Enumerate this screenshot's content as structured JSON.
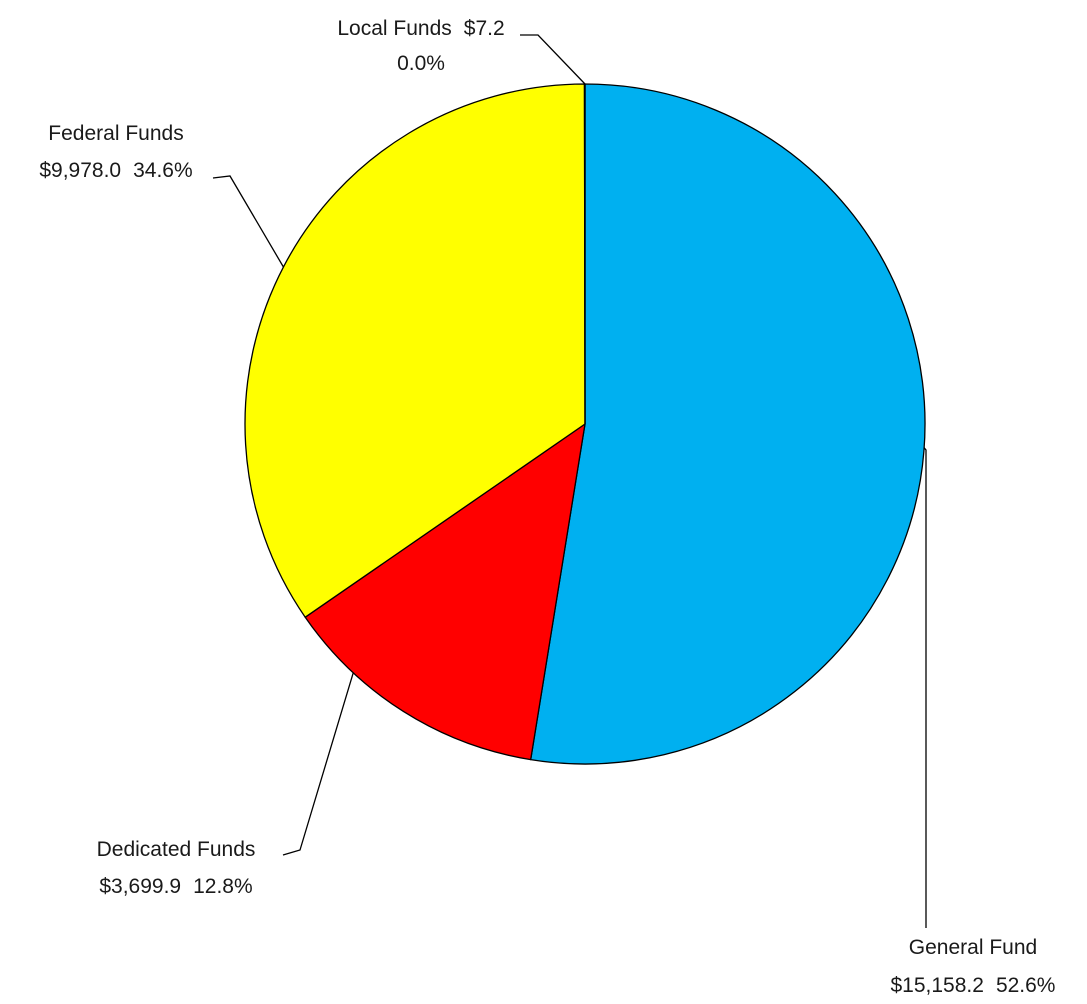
{
  "chart_data": {
    "type": "pie",
    "title": "",
    "start": "12 o'clock",
    "direction": "clockwise",
    "slices": [
      {
        "name": "General Fund",
        "value": 15158.2,
        "value_label": "$15,158.2",
        "percent_label": "52.6%",
        "color": "#00B0F0"
      },
      {
        "name": "Dedicated Funds",
        "value": 3699.9,
        "value_label": "$3,699.9",
        "percent_label": "12.8%",
        "color": "#FF0000"
      },
      {
        "name": "Federal Funds",
        "value": 9978.0,
        "value_label": "$9,978.0",
        "percent_label": "34.6%",
        "color": "#FFFF00"
      },
      {
        "name": "Local Funds",
        "value": 7.2,
        "value_label": "$7.2",
        "percent_label": "0.0%",
        "color": "#7F7F7F"
      }
    ]
  }
}
